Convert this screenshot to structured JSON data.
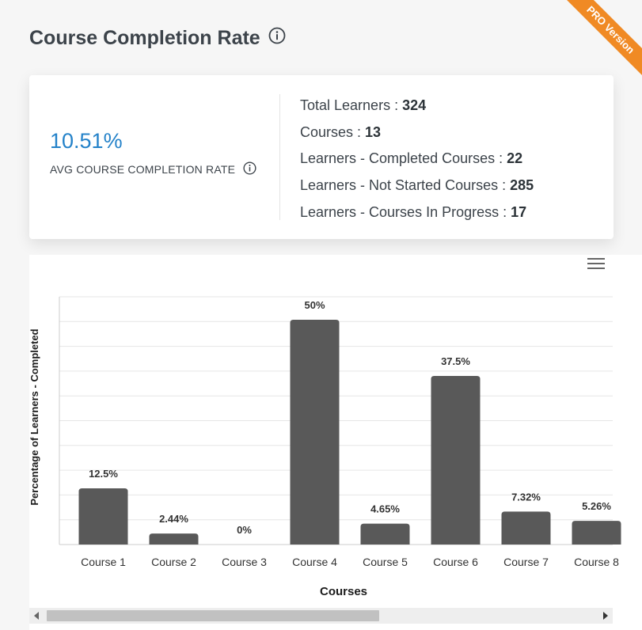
{
  "ribbon": {
    "label": "PRO Version"
  },
  "header": {
    "title": "Course Completion Rate",
    "info_icon": "info-circle-icon"
  },
  "summary": {
    "avg_rate": "10.51%",
    "avg_label": "AVG COURSE COMPLETION RATE",
    "accent_color": "#2482c9",
    "stats": [
      {
        "label": "Total Learners : ",
        "value": "324"
      },
      {
        "label": "Courses : ",
        "value": "13"
      },
      {
        "label": "Learners - Completed Courses : ",
        "value": "22"
      },
      {
        "label": "Learners - Not Started Courses : ",
        "value": "285"
      },
      {
        "label": "Learners - Courses In Progress : ",
        "value": "17"
      }
    ]
  },
  "toolbar": {
    "menu_icon": "hamburger-menu-icon"
  },
  "chart_data": {
    "type": "bar",
    "categories": [
      "Course 1",
      "Course 2",
      "Course 3",
      "Course 4",
      "Course 5",
      "Course 6",
      "Course 7",
      "Course 8"
    ],
    "values": [
      12.5,
      2.44,
      0,
      50,
      4.65,
      37.5,
      7.32,
      5.26
    ],
    "data_labels": [
      "12.5%",
      "2.44%",
      "0%",
      "50%",
      "4.65%",
      "37.5%",
      "7.32%",
      "5.26%"
    ],
    "xlabel": "Courses",
    "ylabel": "Percentage of Learners - Completed",
    "ylim": [
      0,
      50
    ],
    "grid": true,
    "bar_color": "#595959"
  },
  "scrollbar": {
    "left_icon": "scroll-left-arrow-icon",
    "right_icon": "scroll-right-arrow-icon"
  }
}
